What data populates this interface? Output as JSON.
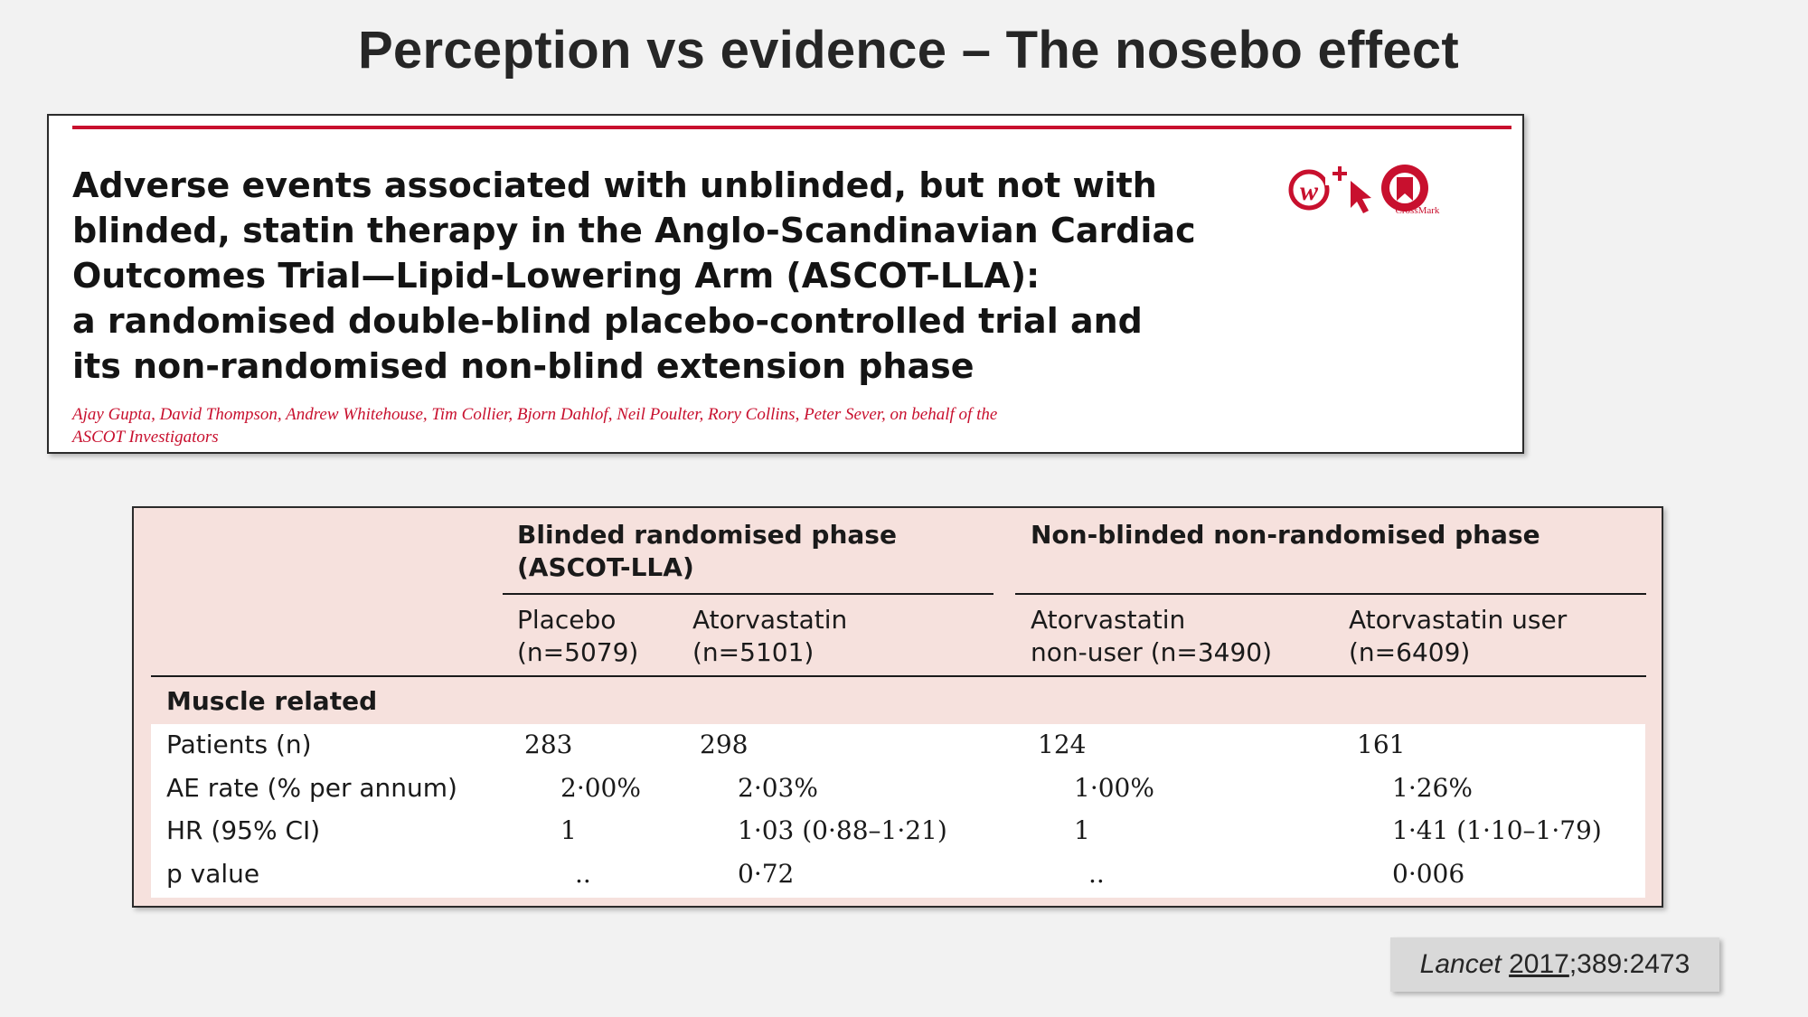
{
  "slide": {
    "title": "Perception vs evidence – The nosebo effect"
  },
  "paper": {
    "title_lines": [
      "Adverse events associated with unblinded, but not with",
      "blinded, statin therapy in the Anglo-Scandinavian Cardiac",
      "Outcomes Trial—Lipid-Lowering Arm (ASCOT-LLA):",
      "a randomised double-blind placebo-controlled trial and",
      "its non-randomised non-blind extension phase"
    ],
    "authors_lines": [
      "Ajay Gupta, David Thompson, Andrew Whitehouse, Tim Collier, Bjorn Dahlof, Neil Poulter, Rory Collins, Peter Sever, on behalf of the",
      "ASCOT Investigators"
    ],
    "crossmark_label": "CrossMark",
    "icons": [
      "w-plus-icon",
      "cursor-icon",
      "crossmark-icon"
    ],
    "accent_color": "#c8102e"
  },
  "table": {
    "groups": [
      {
        "label_lines": [
          "Blinded randomised phase",
          "(ASCOT-LLA)"
        ]
      },
      {
        "label_lines": [
          "Non-blinded non-randomised phase"
        ]
      }
    ],
    "columns": [
      {
        "lines": [
          "Placebo",
          "(n=5079)"
        ]
      },
      {
        "lines": [
          "Atorvastatin",
          "(n=5101)"
        ]
      },
      {
        "lines": [
          "Atorvastatin",
          "non-user (n=3490)"
        ]
      },
      {
        "lines": [
          "Atorvastatin user",
          "(n=6409)"
        ]
      }
    ],
    "section": "Muscle related",
    "rows": [
      {
        "label": "Patients (n)",
        "values": [
          "283",
          "298",
          "124",
          "161"
        ]
      },
      {
        "label": "AE rate (% per annum)",
        "values": [
          "2·00%",
          "2·03%",
          "1·00%",
          "1·26%"
        ]
      },
      {
        "label": "HR (95% CI)",
        "values": [
          "1",
          "1·03 (0·88–1·21)",
          "1",
          "1·41 (1·10–1·79)"
        ]
      },
      {
        "label": "p value",
        "values": [
          "..",
          "0·72",
          "..",
          "0·006"
        ]
      }
    ]
  },
  "citation": {
    "journal": "Lancet",
    "year": "2017",
    "rest": ";389:2473"
  }
}
